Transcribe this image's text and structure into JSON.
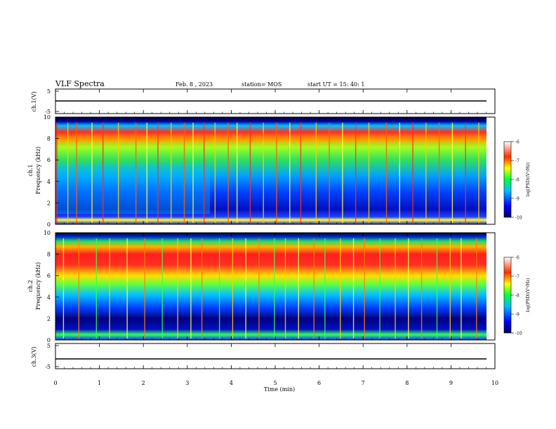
{
  "header": {
    "title": "VLF Spectra",
    "date": "Feb. 8  , 2023",
    "station": "station= MOS",
    "start": "start  UT =   15: 40: 1"
  },
  "colorbar": {
    "label": "log(PSD)(V²/Hz)",
    "ticks": [
      "-6",
      "-7",
      "-8",
      "-9",
      "-10"
    ]
  },
  "chart_data": {
    "type": "heatmap",
    "xlabel": "Time  (min)",
    "xlim": [
      0,
      10
    ],
    "xticks": [
      "0",
      "1",
      "2",
      "3",
      "4",
      "5",
      "6",
      "7",
      "8",
      "9",
      "10"
    ],
    "panels": [
      {
        "name": "ch.1(V)",
        "kind": "line",
        "ylabel": "ch.1(V)",
        "ylim": [
          -5,
          5
        ],
        "yticks": [
          "5",
          "-5"
        ],
        "value": 0
      },
      {
        "name": "ch.1",
        "kind": "spectrogram",
        "ylabel": "ch.1\nFrequency (kHz)",
        "ylim": [
          0,
          10
        ],
        "yticks": [
          "0",
          "2",
          "4",
          "6",
          "8",
          "10"
        ],
        "clim": [
          -10,
          -6
        ],
        "intense_band_khz": [
          7.5,
          9.5
        ],
        "spike_min": [
          0.0,
          0.25,
          0.45,
          0.8,
          1.05,
          1.4,
          1.8,
          2.05,
          2.3,
          2.6,
          2.9,
          3.1,
          3.35,
          3.6,
          3.9,
          4.1,
          4.4,
          4.7,
          5.0,
          5.3,
          5.55,
          5.9,
          6.2,
          6.5,
          6.8,
          7.1,
          7.5,
          7.8,
          8.1,
          8.4,
          8.7,
          9.0,
          9.3,
          9.6
        ]
      },
      {
        "name": "ch.2",
        "kind": "spectrogram",
        "ylabel": "ch.2\nFrequency (kHz)",
        "ylim": [
          0,
          10
        ],
        "yticks": [
          "0",
          "2",
          "4",
          "6",
          "8",
          "10"
        ],
        "clim": [
          -10,
          -6
        ],
        "intense_band_khz": [
          5.5,
          8.5
        ],
        "spike_min": [
          0.15,
          0.5,
          0.9,
          1.2,
          1.6,
          2.0,
          2.4,
          2.75,
          3.05,
          3.3,
          3.7,
          4.0,
          4.3,
          4.6,
          4.95,
          5.2,
          5.5,
          5.85,
          6.1,
          6.45,
          6.75,
          7.0,
          7.35,
          7.7,
          8.0,
          8.3,
          8.65,
          8.95,
          9.2,
          9.55
        ]
      },
      {
        "name": "ch.3(V)",
        "kind": "line",
        "ylabel": "ch.3(V)",
        "ylim": [
          -5,
          5
        ],
        "yticks": [
          "5",
          "-5"
        ],
        "value": 0
      }
    ]
  }
}
